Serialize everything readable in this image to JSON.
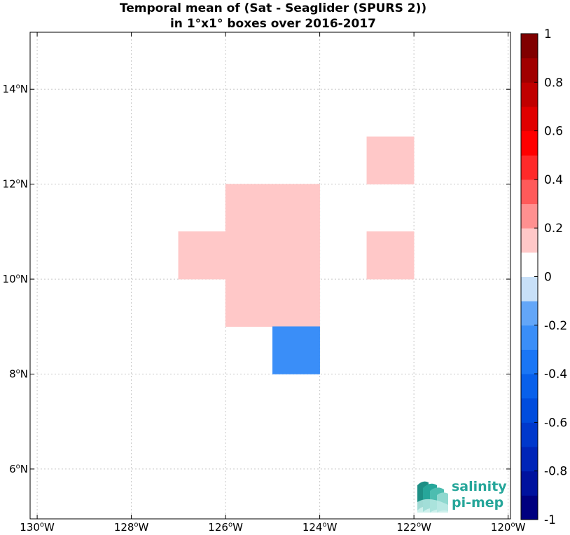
{
  "chart_data": {
    "type": "heatmap",
    "title": [
      "Temporal mean of (Sat - Seaglider (SPURS 2))",
      "in 1°x1° boxes over 2016-2017"
    ],
    "x_ticks": [
      {
        "value": -130,
        "label": "130",
        "suffix": "W"
      },
      {
        "value": -128,
        "label": "128",
        "suffix": "W"
      },
      {
        "value": -126,
        "label": "126",
        "suffix": "W"
      },
      {
        "value": -124,
        "label": "124",
        "suffix": "W"
      },
      {
        "value": -122,
        "label": "122",
        "suffix": "W"
      },
      {
        "value": -120,
        "label": "120",
        "suffix": "W"
      }
    ],
    "y_ticks": [
      {
        "value": 6,
        "label": "6",
        "suffix": "N"
      },
      {
        "value": 8,
        "label": "8",
        "suffix": "N"
      },
      {
        "value": 10,
        "label": "10",
        "suffix": "N"
      },
      {
        "value": 12,
        "label": "12",
        "suffix": "N"
      },
      {
        "value": 14,
        "label": "14",
        "suffix": "N"
      }
    ],
    "xlim": [
      -130.15,
      -119.95
    ],
    "ylim": [
      4.95,
      15.2
    ],
    "grid": true,
    "cells": [
      {
        "lon": -127,
        "lat": 10,
        "value": 0.15
      },
      {
        "lon": -126,
        "lat": 11,
        "value": 0.15
      },
      {
        "lon": -125,
        "lat": 11,
        "value": 0.15
      },
      {
        "lon": -126,
        "lat": 10,
        "value": 0.15
      },
      {
        "lon": -125,
        "lat": 10,
        "value": 0.15
      },
      {
        "lon": -126,
        "lat": 9,
        "value": 0.15
      },
      {
        "lon": -125,
        "lat": 9,
        "value": 0.15
      },
      {
        "lon": -123,
        "lat": 12,
        "value": 0.15
      },
      {
        "lon": -123,
        "lat": 10,
        "value": 0.15
      },
      {
        "lon": -125,
        "lat": 8,
        "value": -0.25
      }
    ],
    "colorbar": {
      "range": [
        -1,
        1
      ],
      "levels": 20,
      "ticks": [
        {
          "value": 1,
          "label": "1"
        },
        {
          "value": 0.8,
          "label": "0.8"
        },
        {
          "value": 0.6,
          "label": "0.6"
        },
        {
          "value": 0.4,
          "label": "0.4"
        },
        {
          "value": 0.2,
          "label": "0.2"
        },
        {
          "value": 0,
          "label": "0"
        },
        {
          "value": -0.2,
          "label": "-0.2"
        },
        {
          "value": -0.4,
          "label": "-0.4"
        },
        {
          "value": -0.6,
          "label": "-0.6"
        },
        {
          "value": -0.8,
          "label": "-0.8"
        },
        {
          "value": -1,
          "label": "-1"
        }
      ],
      "colors_low_to_high": [
        "#00007f",
        "#00129e",
        "#0025b8",
        "#0038cc",
        "#004cdd",
        "#0860eb",
        "#1a76f5",
        "#3a8ef8",
        "#63a6f8",
        "#c8e0f8",
        "#ffffff",
        "#ffc8c8",
        "#ff9090",
        "#ff5a5a",
        "#ff2a2a",
        "#ff0000",
        "#e00000",
        "#c00000",
        "#a00000",
        "#800000"
      ]
    }
  },
  "logo": {
    "line1": "salinity",
    "line2": "pi-mep"
  }
}
